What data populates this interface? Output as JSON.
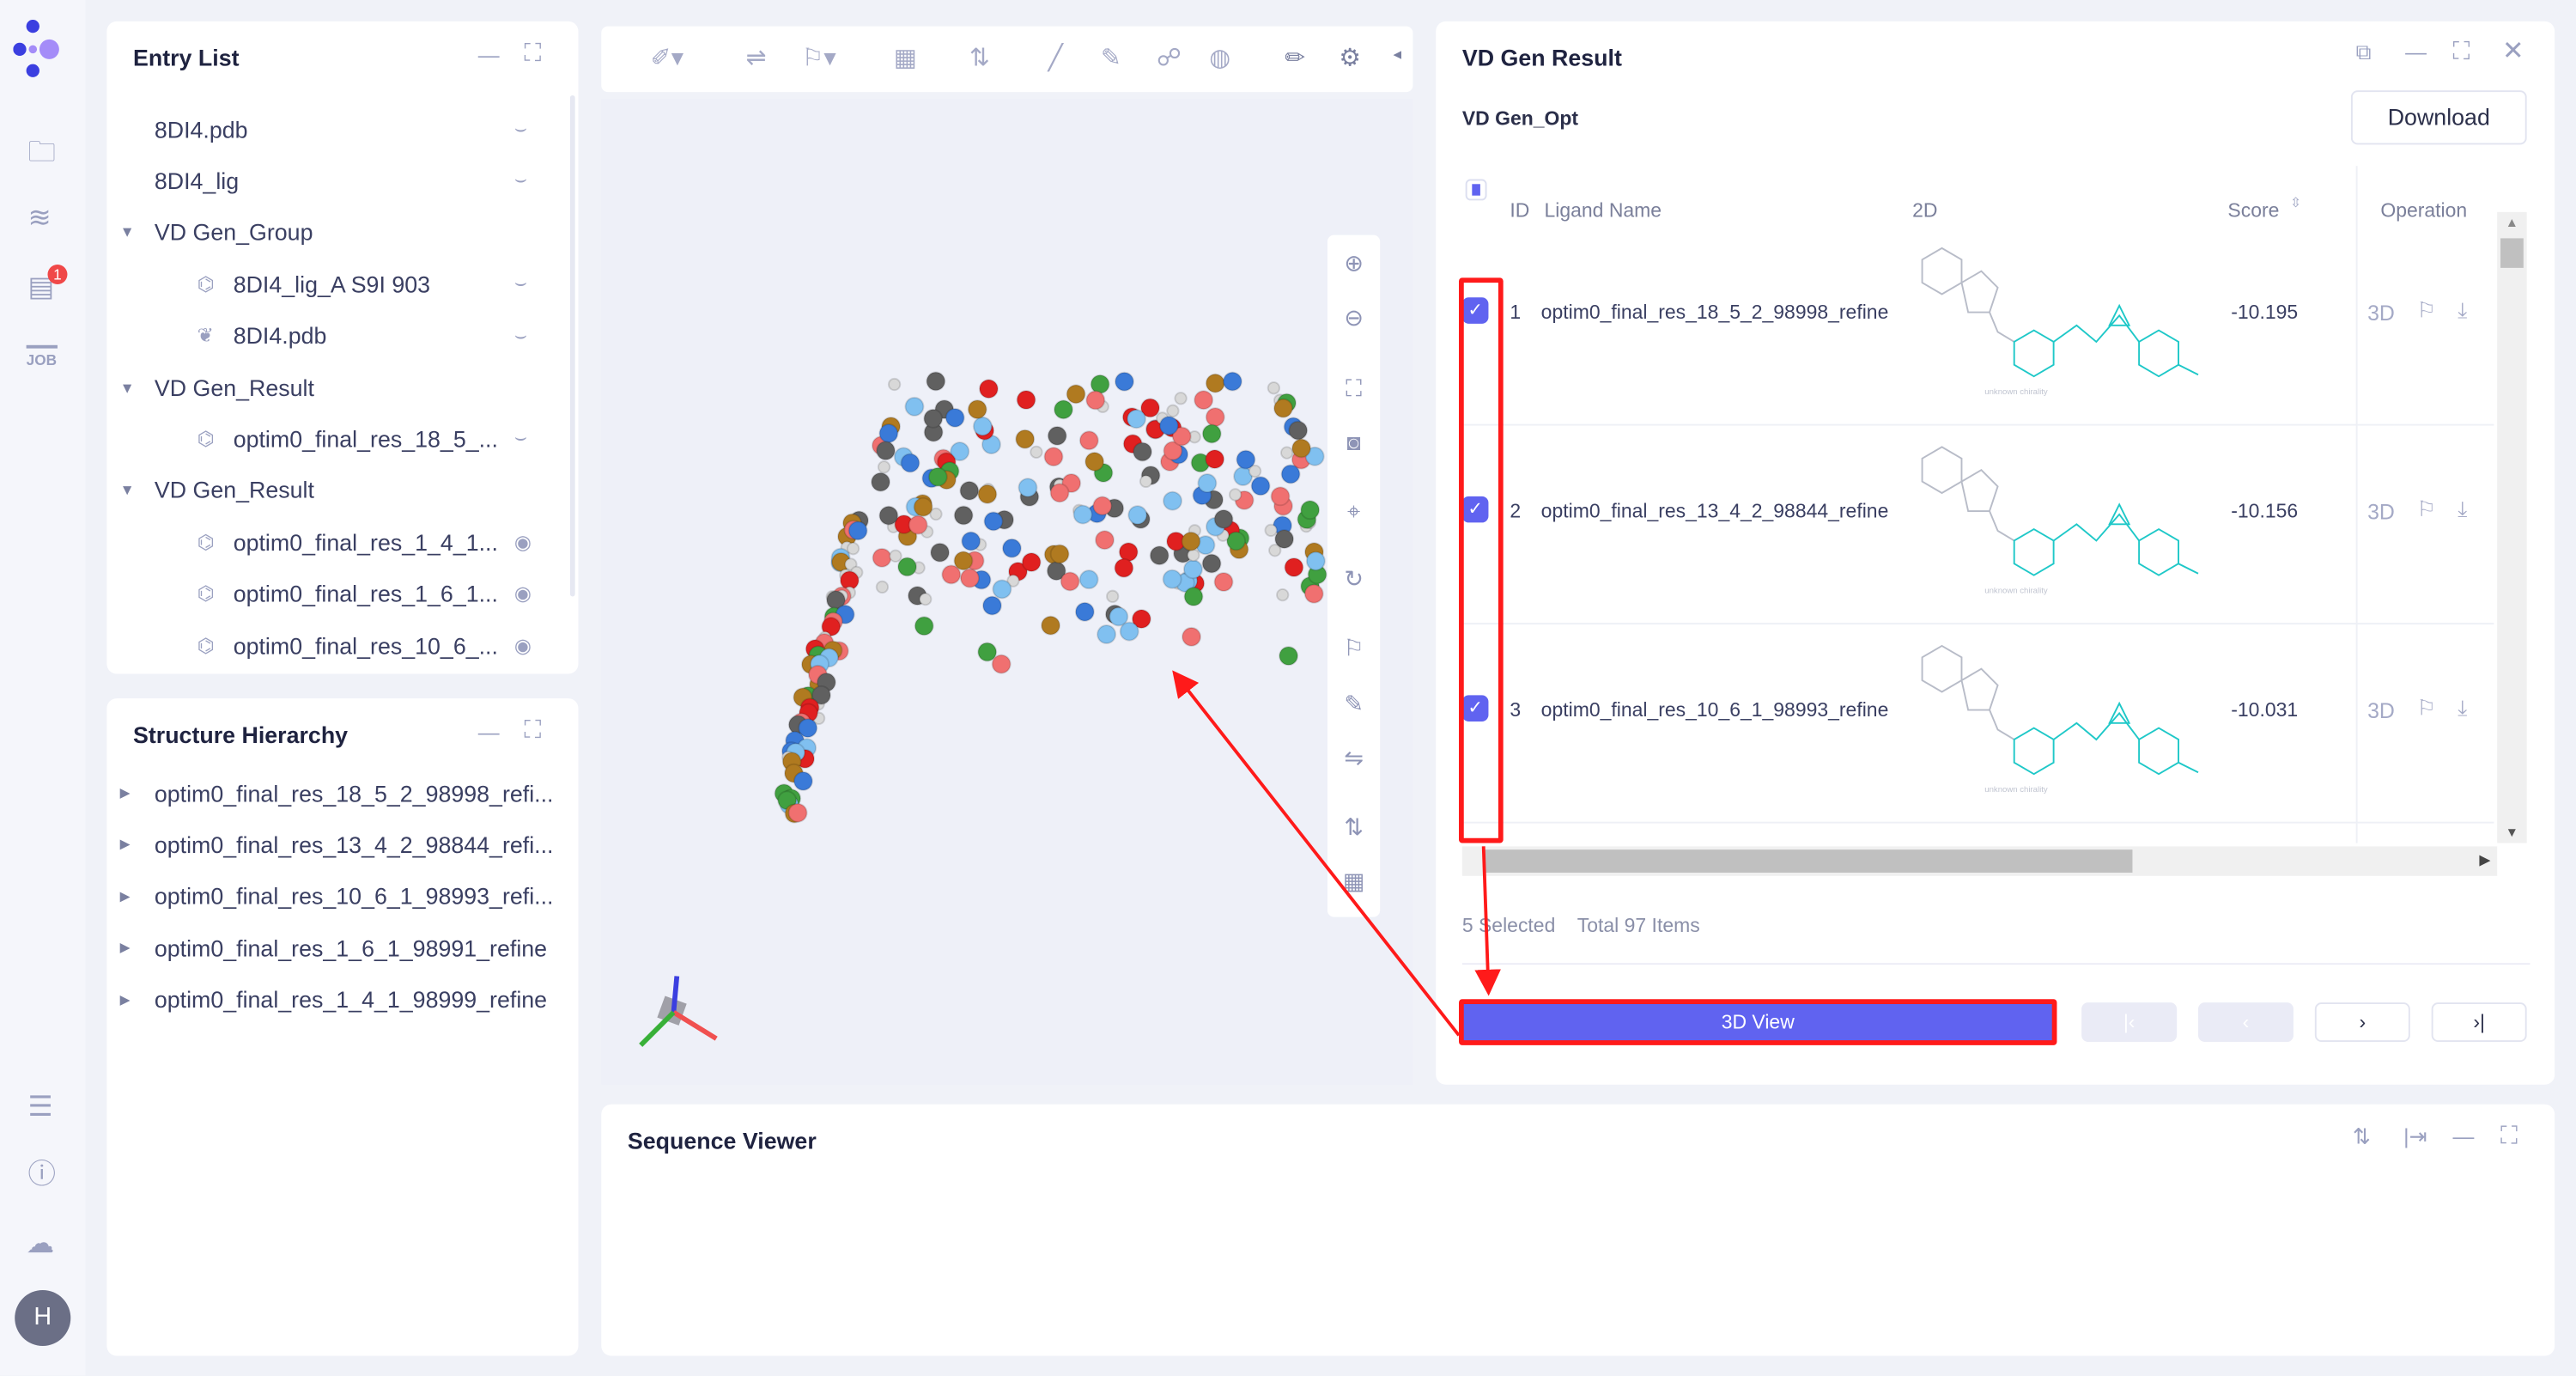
{
  "rail": {
    "badge": "1",
    "job_label": "JOB",
    "avatar": "H"
  },
  "entry_list": {
    "title": "Entry List",
    "items": [
      {
        "label": "8DI4.pdb",
        "level": 0,
        "visible": false
      },
      {
        "label": "8DI4_lig",
        "level": 0,
        "visible": false
      },
      {
        "label": "VD Gen_Group",
        "level": 0,
        "group": true
      },
      {
        "label": "8DI4_lig_A S9I 903",
        "level": 1,
        "visible": false,
        "icon": "molecule-icon"
      },
      {
        "label": "8DI4.pdb",
        "level": 1,
        "visible": false,
        "icon": "protein-icon"
      },
      {
        "label": "VD Gen_Result",
        "level": 0,
        "group": true
      },
      {
        "label": "optim0_final_res_18_5_...",
        "level": 1,
        "visible": false,
        "icon": "molecule-icon"
      },
      {
        "label": "VD Gen_Result",
        "level": 0,
        "group": true
      },
      {
        "label": "optim0_final_res_1_4_1...",
        "level": 1,
        "visible": true,
        "icon": "molecule-icon"
      },
      {
        "label": "optim0_final_res_1_6_1...",
        "level": 1,
        "visible": true,
        "icon": "molecule-icon"
      },
      {
        "label": "optim0_final_res_10_6_...",
        "level": 1,
        "visible": true,
        "icon": "molecule-icon"
      }
    ]
  },
  "structure_hierarchy": {
    "title": "Structure Hierarchy",
    "items": [
      "optim0_final_res_18_5_2_98998_refi...",
      "optim0_final_res_13_4_2_98844_refi...",
      "optim0_final_res_10_6_1_98993_refi...",
      "optim0_final_res_1_6_1_98991_refine",
      "optim0_final_res_1_4_1_98999_refine"
    ]
  },
  "result": {
    "title": "VD Gen Result",
    "subtitle": "VD Gen_Opt",
    "download": "Download",
    "columns": {
      "id": "ID",
      "name": "Ligand Name",
      "twod": "2D",
      "score": "Score",
      "operation": "Operation"
    },
    "rows": [
      {
        "id": "1",
        "name": "optim0_final_res_18_5_2_98998_refine",
        "score": "-10.195",
        "checked": true,
        "chirality": "unknown chirality"
      },
      {
        "id": "2",
        "name": "optim0_final_res_13_4_2_98844_refine",
        "score": "-10.156",
        "checked": true,
        "chirality": "unknown chirality"
      },
      {
        "id": "3",
        "name": "optim0_final_res_10_6_1_98993_refine",
        "score": "-10.031",
        "checked": true,
        "chirality": "unknown chirality"
      }
    ],
    "op_3d": "3D",
    "selected": "5 Selected",
    "total": "Total 97 Items",
    "view_button": "3D View",
    "pager": {
      "first": "|‹",
      "prev": "‹",
      "next": "›",
      "last": "›|"
    }
  },
  "sequence": {
    "title": "Sequence Viewer"
  },
  "colors": {
    "accent": "#6063f0",
    "highlight": "#ff1a1a",
    "ligand": "#1fc8c8"
  }
}
